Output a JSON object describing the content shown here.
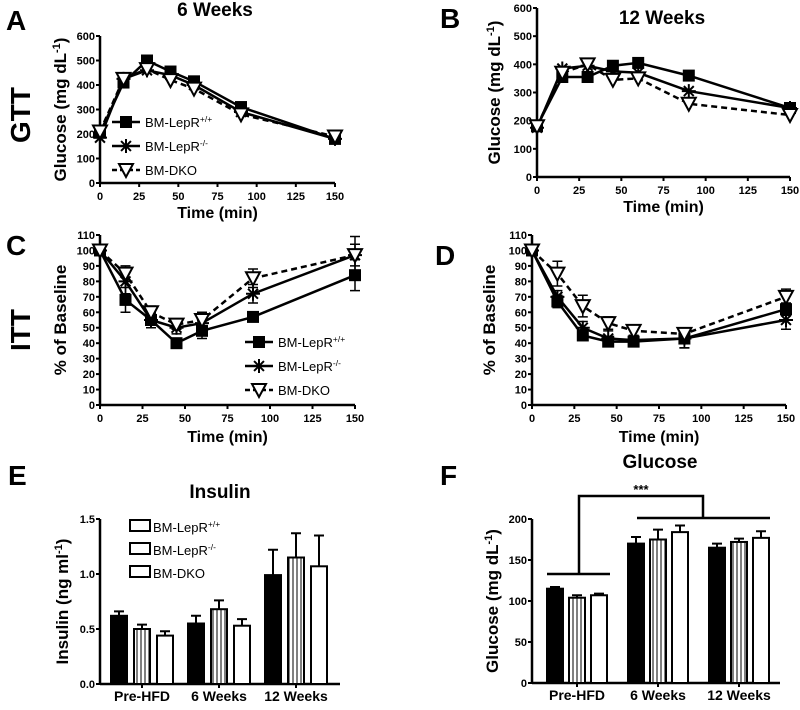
{
  "figure": {
    "row_labels": {
      "gtt": "GTT",
      "itt": "ITT"
    },
    "panel_letters": {
      "a": "A",
      "b": "B",
      "c": "C",
      "d": "D",
      "e": "E",
      "f": "F"
    }
  },
  "chart_data": [
    {
      "id": "A",
      "type": "line",
      "title": "6 Weeks",
      "xlabel": "Time (min)",
      "ylabel": "Glucose (mg dL-1)",
      "ylabel_base": "Glucose (mg dL",
      "ylabel_sup": "-1",
      "ylabel_end": ")",
      "x": [
        0,
        15,
        30,
        45,
        60,
        90,
        150
      ],
      "xticks": [
        0,
        25,
        50,
        75,
        100,
        125,
        150
      ],
      "yticks": [
        0,
        100,
        200,
        300,
        400,
        500,
        600
      ],
      "xlim": [
        0,
        150
      ],
      "ylim": [
        0,
        600
      ],
      "legend": "center-left",
      "series": [
        {
          "name": "BM-LepR",
          "sup": "+/+",
          "marker": "square",
          "values": [
            205,
            410,
            500,
            455,
            415,
            310,
            180
          ]
        },
        {
          "name": "BM-LepR",
          "sup": "-/-",
          "marker": "asterisk",
          "values": [
            185,
            425,
            460,
            440,
            400,
            290,
            180
          ]
        },
        {
          "name": "BM-DKO",
          "sup": "",
          "marker": "triangle-down",
          "dashed": true,
          "values": [
            210,
            425,
            465,
            420,
            385,
            280,
            190
          ]
        }
      ]
    },
    {
      "id": "B",
      "type": "line",
      "title": "12 Weeks",
      "xlabel": "Time (min)",
      "ylabel": "Glucose (mg dL-1)",
      "ylabel_base": "Glucose (mg dL",
      "ylabel_sup": "-1",
      "ylabel_end": ")",
      "x": [
        0,
        15,
        30,
        45,
        60,
        90,
        150
      ],
      "xticks": [
        0,
        25,
        50,
        75,
        100,
        125,
        150
      ],
      "yticks": [
        0,
        100,
        200,
        300,
        400,
        500,
        600
      ],
      "xlim": [
        0,
        150
      ],
      "ylim": [
        0,
        600
      ],
      "legend": "none",
      "series": [
        {
          "name": "BM-LepR",
          "sup": "+/+",
          "marker": "square",
          "values": [
            180,
            355,
            355,
            395,
            405,
            360,
            245
          ]
        },
        {
          "name": "BM-LepR",
          "sup": "-/-",
          "marker": "asterisk",
          "values": [
            175,
            385,
            395,
            375,
            370,
            305,
            245
          ]
        },
        {
          "name": "BM-DKO",
          "sup": "",
          "marker": "triangle-down",
          "dashed": true,
          "values": [
            180,
            370,
            400,
            345,
            350,
            260,
            220
          ]
        }
      ]
    },
    {
      "id": "C",
      "type": "line",
      "title": "",
      "xlabel": "Time (min)",
      "ylabel": "% of Baseline",
      "x": [
        0,
        15,
        30,
        45,
        60,
        90,
        150
      ],
      "xticks": [
        0,
        25,
        50,
        75,
        100,
        125,
        150
      ],
      "yticks": [
        0,
        10,
        20,
        30,
        40,
        50,
        60,
        70,
        80,
        90,
        100,
        110
      ],
      "xlim": [
        0,
        150
      ],
      "ylim": [
        0,
        110
      ],
      "legend": "bottom-right",
      "series": [
        {
          "name": "BM-LepR",
          "sup": "+/+",
          "marker": "square",
          "values": [
            100,
            68,
            55,
            40,
            48,
            57,
            84
          ],
          "err": [
            2,
            8,
            5,
            3,
            5,
            2,
            10
          ]
        },
        {
          "name": "BM-LepR",
          "sup": "-/-",
          "marker": "asterisk",
          "values": [
            100,
            80,
            55,
            50,
            53,
            72,
            97
          ],
          "err": [
            2,
            8,
            5,
            4,
            6,
            6,
            7
          ]
        },
        {
          "name": "BM-DKO",
          "sup": "",
          "marker": "triangle-down",
          "dashed": true,
          "values": [
            100,
            85,
            60,
            52,
            55,
            82,
            97
          ],
          "err": [
            2,
            5,
            4,
            3,
            5,
            6,
            12
          ]
        }
      ]
    },
    {
      "id": "D",
      "type": "line",
      "title": "",
      "xlabel": "Time (min)",
      "ylabel": "% of Baseline",
      "x": [
        0,
        15,
        30,
        45,
        60,
        90,
        150
      ],
      "xticks": [
        0,
        25,
        50,
        75,
        100,
        125,
        150
      ],
      "yticks": [
        0,
        10,
        20,
        30,
        40,
        50,
        60,
        70,
        80,
        90,
        100,
        110
      ],
      "xlim": [
        0,
        150
      ],
      "ylim": [
        0,
        110
      ],
      "legend": "none",
      "series": [
        {
          "name": "BM-LepR",
          "sup": "+/+",
          "marker": "square",
          "values": [
            100,
            67,
            45,
            41,
            41,
            43,
            62
          ],
          "err": [
            2,
            4,
            3,
            2,
            2,
            6,
            4
          ]
        },
        {
          "name": "BM-LepR",
          "sup": "-/-",
          "marker": "asterisk",
          "values": [
            100,
            70,
            50,
            43,
            42,
            43,
            55
          ],
          "err": [
            2,
            4,
            4,
            5,
            3,
            6,
            6
          ]
        },
        {
          "name": "BM-DKO",
          "sup": "",
          "marker": "triangle-down",
          "dashed": true,
          "values": [
            100,
            85,
            64,
            53,
            48,
            46,
            70
          ],
          "err": [
            2,
            8,
            7,
            4,
            3,
            3,
            5
          ]
        }
      ]
    },
    {
      "id": "E",
      "type": "bar",
      "title": "Insulin",
      "xlabel": "",
      "ylabel": "Insulin (ng ml-1)",
      "ylabel_base": "Insulin (ng ml",
      "ylabel_sup": "-1",
      "ylabel_end": ")",
      "categories": [
        "Pre-HFD",
        "6 Weeks",
        "12 Weeks"
      ],
      "yticks": [
        0.0,
        0.5,
        1.0,
        1.5
      ],
      "ytick_labels": [
        "0.0",
        "0.5",
        "1.0",
        "1.5"
      ],
      "ylim": [
        0,
        1.5
      ],
      "legend": "top-left",
      "series": [
        {
          "name": "BM-LepR",
          "sup": "+/+",
          "fill": "black",
          "values": [
            0.62,
            0.55,
            0.99
          ],
          "err": [
            0.04,
            0.07,
            0.23
          ]
        },
        {
          "name": "BM-LepR",
          "sup": "-/-",
          "fill": "striped",
          "values": [
            0.5,
            0.68,
            1.15
          ],
          "err": [
            0.04,
            0.08,
            0.22
          ]
        },
        {
          "name": "BM-DKO",
          "sup": "",
          "fill": "open",
          "values": [
            0.44,
            0.53,
            1.07
          ],
          "err": [
            0.04,
            0.06,
            0.28
          ]
        }
      ]
    },
    {
      "id": "F",
      "type": "bar",
      "title": "Glucose",
      "xlabel": "",
      "ylabel": "Glucose (mg dL-1)",
      "ylabel_base": "Glucose (mg dL",
      "ylabel_sup": "-1",
      "ylabel_end": ")",
      "categories": [
        "Pre-HFD",
        "6 Weeks",
        "12 Weeks"
      ],
      "yticks": [
        0,
        50,
        100,
        150,
        200
      ],
      "ytick_labels": [
        "0",
        "50",
        "100",
        "150",
        "200"
      ],
      "ylim": [
        0,
        200
      ],
      "legend": "none",
      "annotation": "***",
      "series": [
        {
          "name": "BM-LepR",
          "sup": "+/+",
          "fill": "black",
          "values": [
            115,
            170,
            165
          ],
          "err": [
            2,
            8,
            5
          ]
        },
        {
          "name": "BM-LepR",
          "sup": "-/-",
          "fill": "striped",
          "values": [
            104,
            175,
            172
          ],
          "err": [
            3,
            12,
            4
          ]
        },
        {
          "name": "BM-DKO",
          "sup": "",
          "fill": "open",
          "values": [
            107,
            184,
            177
          ],
          "err": [
            2,
            8,
            8
          ]
        }
      ]
    }
  ]
}
